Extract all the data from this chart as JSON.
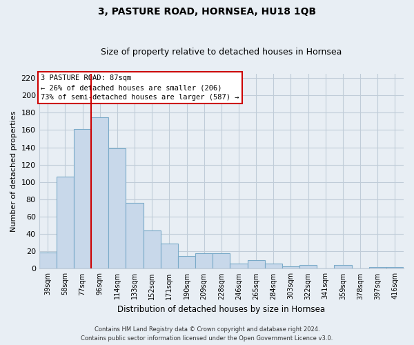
{
  "title": "3, PASTURE ROAD, HORNSEA, HU18 1QB",
  "subtitle": "Size of property relative to detached houses in Hornsea",
  "xlabel": "Distribution of detached houses by size in Hornsea",
  "ylabel": "Number of detached properties",
  "bar_labels": [
    "39sqm",
    "58sqm",
    "77sqm",
    "96sqm",
    "114sqm",
    "133sqm",
    "152sqm",
    "171sqm",
    "190sqm",
    "209sqm",
    "228sqm",
    "246sqm",
    "265sqm",
    "284sqm",
    "303sqm",
    "322sqm",
    "341sqm",
    "359sqm",
    "378sqm",
    "397sqm",
    "416sqm"
  ],
  "bar_values": [
    19,
    106,
    161,
    175,
    139,
    76,
    44,
    29,
    15,
    18,
    18,
    6,
    10,
    6,
    3,
    4,
    0,
    4,
    0,
    2,
    2
  ],
  "bar_color": "#c8d8ea",
  "bar_edge_color": "#7aaac8",
  "ylim": [
    0,
    225
  ],
  "yticks": [
    0,
    20,
    40,
    60,
    80,
    100,
    120,
    140,
    160,
    180,
    200,
    220
  ],
  "vline_x": 2.5,
  "vline_color": "#cc0000",
  "annotation_title": "3 PASTURE ROAD: 87sqm",
  "annotation_line1": "← 26% of detached houses are smaller (206)",
  "annotation_line2": "73% of semi-detached houses are larger (587) →",
  "annotation_box_color": "#ffffff",
  "annotation_box_edge": "#cc0000",
  "footer_line1": "Contains HM Land Registry data © Crown copyright and database right 2024.",
  "footer_line2": "Contains public sector information licensed under the Open Government Licence v3.0.",
  "background_color": "#e8eef4",
  "plot_background": "#e8eef4",
  "grid_color": "#c0ccd8",
  "title_fontsize": 10,
  "subtitle_fontsize": 9
}
